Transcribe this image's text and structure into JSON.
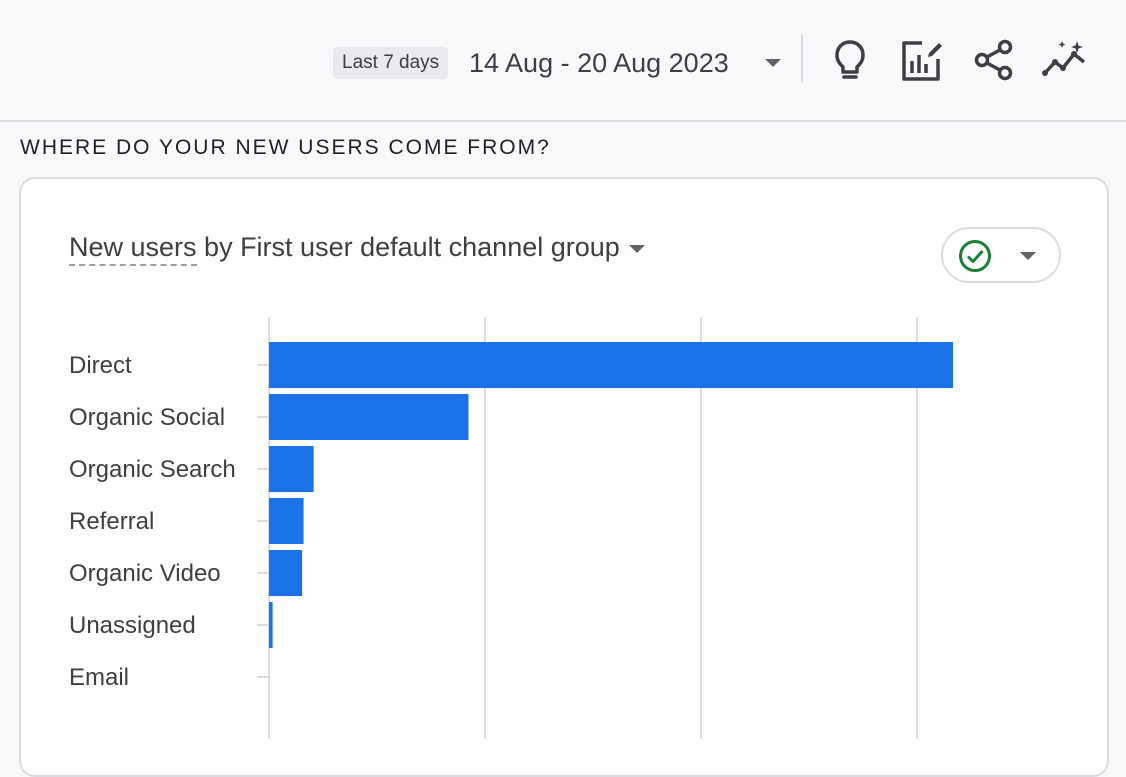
{
  "header": {
    "range_chip": "Last 7 days",
    "date_range": "14 Aug - 20 Aug 2023",
    "icons": [
      "lightbulb-icon",
      "customize-report-icon",
      "share-icon",
      "insights-icon"
    ]
  },
  "section": {
    "heading": "WHERE DO YOUR NEW USERS COME FROM?"
  },
  "card": {
    "title_metric": "New users",
    "title_rest": " by First user default channel group",
    "compare_status": "check-circle-icon"
  },
  "colors": {
    "bar": "#1a73e8",
    "check": "#188038",
    "grid": "#dadce0"
  },
  "chart_data": {
    "type": "bar",
    "orientation": "horizontal",
    "categories": [
      "Direct",
      "Organic Social",
      "Organic Search",
      "Referral",
      "Organic Video",
      "Unassigned",
      "Email"
    ],
    "values": [
      950,
      277,
      62,
      48,
      46,
      5,
      0
    ],
    "xlim": [
      0,
      1000
    ],
    "x_grid_values": [
      0,
      300,
      600,
      900
    ],
    "grid": true,
    "title": "New users by First user default channel group"
  }
}
